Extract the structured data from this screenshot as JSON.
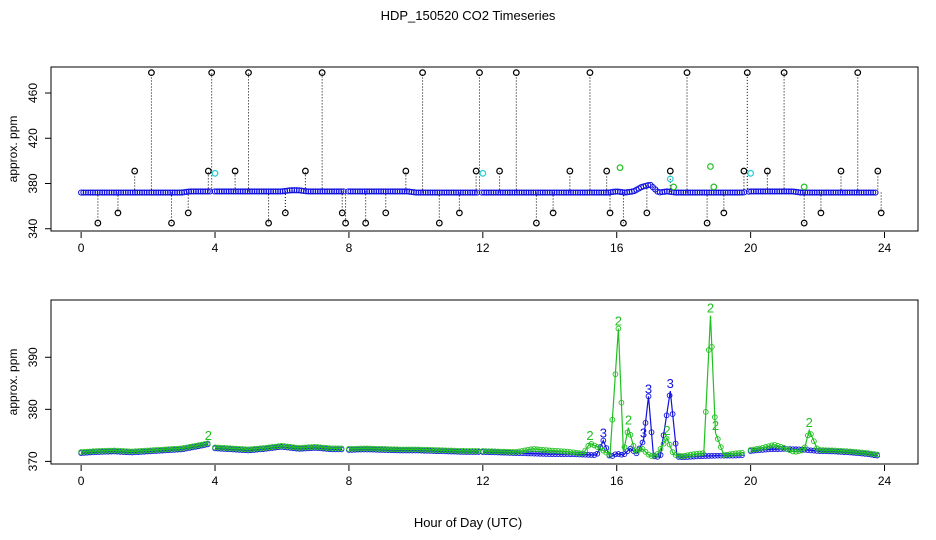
{
  "figure": {
    "title": "HDP_150520  CO2 Timeseries",
    "xlabel": "Hour of Day (UTC)"
  },
  "colors": {
    "black": "#000000",
    "blue": "#1010e0",
    "green": "#20c020",
    "cyan": "#20d0d0"
  },
  "chart_data": [
    {
      "type": "scatter",
      "panel": "top",
      "ylabel": "approx. ppm",
      "xlim": [
        0,
        24
      ],
      "ylim": [
        340,
        480
      ],
      "x_ticks": [
        0,
        4,
        8,
        12,
        16,
        20,
        24
      ],
      "x_tick_labels": [
        "0",
        "4",
        "8",
        "12",
        "16",
        "20",
        "24"
      ],
      "y_ticks": [
        340,
        380,
        420,
        460
      ],
      "y_tick_labels": [
        "340",
        "380",
        "420",
        "460"
      ],
      "baseline_series": {
        "name": "",
        "color": "blue",
        "x": [
          0.0,
          0.25,
          0.5,
          0.75,
          1.0,
          1.25,
          1.5,
          1.75,
          2.0,
          2.25,
          2.5,
          2.75,
          3.0,
          3.25,
          3.5,
          3.75,
          4.0,
          4.25,
          4.5,
          4.75,
          5.0,
          5.25,
          5.5,
          5.75,
          6.0,
          6.25,
          6.5,
          6.75,
          7.0,
          7.25,
          7.5,
          7.75,
          8.0,
          8.25,
          8.5,
          8.75,
          9.0,
          9.25,
          9.5,
          9.75,
          10.0,
          10.25,
          10.5,
          10.75,
          11.0,
          11.25,
          11.5,
          11.75,
          12.0,
          12.25,
          12.5,
          12.75,
          13.0,
          13.25,
          13.5,
          13.75,
          14.0,
          14.25,
          14.5,
          14.75,
          15.0,
          15.25,
          15.5,
          15.75,
          16.0,
          16.25,
          16.5,
          16.75,
          17.0,
          17.25,
          17.5,
          17.75,
          18.0,
          18.25,
          18.5,
          18.75,
          19.0,
          19.25,
          19.5,
          19.75,
          20.0,
          20.25,
          20.5,
          20.75,
          21.0,
          21.25,
          21.5,
          21.75,
          22.0,
          22.25,
          22.5,
          22.75,
          23.0,
          23.25,
          23.5,
          23.75
        ],
        "y": [
          372,
          372,
          372,
          372,
          372,
          372,
          372,
          372,
          372,
          372,
          372,
          372,
          372,
          373,
          373,
          373,
          373,
          373,
          373,
          373,
          373,
          373,
          373,
          373,
          373,
          374,
          374,
          373,
          373,
          373,
          373,
          373,
          373,
          373,
          373,
          373,
          373,
          373,
          373,
          373,
          372,
          372,
          372,
          372,
          372,
          372,
          372,
          372,
          372,
          372,
          372,
          372,
          372,
          372,
          372,
          372,
          372,
          372,
          372,
          372,
          372,
          372,
          372,
          372,
          373,
          372,
          373,
          377,
          379,
          372,
          373,
          372,
          372,
          372,
          372,
          372,
          372,
          372,
          372,
          372,
          373,
          373,
          373,
          373,
          373,
          373,
          372,
          372,
          372,
          372,
          372,
          372,
          372,
          372,
          372,
          372
        ]
      },
      "spike_series": {
        "name": "",
        "color": "black",
        "x": [
          0.5,
          1.1,
          1.6,
          2.1,
          2.7,
          3.2,
          3.8,
          3.9,
          4.6,
          5.0,
          5.6,
          6.1,
          6.7,
          7.2,
          7.8,
          7.9,
          8.5,
          9.1,
          9.7,
          10.2,
          10.7,
          11.3,
          11.8,
          11.9,
          12.5,
          13.0,
          13.6,
          14.1,
          14.6,
          15.2,
          15.7,
          15.8,
          16.2,
          16.9,
          17.6,
          18.1,
          18.7,
          19.2,
          19.8,
          19.9,
          20.5,
          21.0,
          21.6,
          22.1,
          22.7,
          23.2,
          23.8,
          23.9
        ],
        "y": [
          345,
          354,
          391,
          478,
          345,
          354,
          391,
          478,
          391,
          478,
          345,
          354,
          391,
          478,
          354,
          345,
          345,
          354,
          391,
          478,
          345,
          354,
          391,
          478,
          391,
          478,
          345,
          354,
          391,
          478,
          391,
          354,
          345,
          354,
          391,
          478,
          345,
          354,
          391,
          478,
          391,
          478,
          345,
          354,
          391,
          478,
          391,
          354
        ]
      },
      "green_points": {
        "name": "",
        "color": "green",
        "x": [
          16.1,
          17.7,
          18.8,
          18.9,
          21.6
        ],
        "y": [
          394,
          377,
          395,
          377,
          377
        ]
      },
      "cyan_points": {
        "name": "",
        "color": "cyan",
        "x": [
          4.0,
          12.0,
          17.6,
          20.0
        ],
        "y": [
          389,
          389,
          384,
          389
        ]
      }
    },
    {
      "type": "line",
      "panel": "bottom",
      "ylabel": "approx. ppm",
      "xlim": [
        0,
        24
      ],
      "ylim": [
        370,
        400
      ],
      "x_ticks": [
        0,
        4,
        8,
        12,
        16,
        20,
        24
      ],
      "x_tick_labels": [
        "0",
        "4",
        "8",
        "12",
        "16",
        "20",
        "24"
      ],
      "y_ticks": [
        370,
        380,
        390
      ],
      "y_tick_labels": [
        "370",
        "380",
        "390"
      ],
      "series": [
        {
          "name": "",
          "color": "blue",
          "marker": "3",
          "segments": [
            {
              "x": [
                0.0,
                0.5,
                1.0,
                1.5,
                2.0,
                2.5,
                3.0,
                3.5,
                3.8
              ],
              "y": [
                371.6,
                371.8,
                371.9,
                371.7,
                371.9,
                372.1,
                372.3,
                372.9,
                373.3
              ]
            },
            {
              "x": [
                4.0,
                4.5,
                5.0,
                5.5,
                6.0,
                6.5,
                7.0,
                7.5,
                7.8
              ],
              "y": [
                372.5,
                372.3,
                372.1,
                372.4,
                372.8,
                372.4,
                372.6,
                372.3,
                372.3
              ]
            },
            {
              "x": [
                8.0,
                8.5,
                9.0,
                9.5,
                10.0,
                10.5,
                11.0,
                11.5,
                11.9
              ],
              "y": [
                372.2,
                372.3,
                372.2,
                372.1,
                372.1,
                372.0,
                371.9,
                371.8,
                371.8
              ]
            },
            {
              "x": [
                12.0,
                12.5,
                13.0,
                13.5,
                14.0,
                14.5,
                15.0,
                15.4,
                15.6,
                15.8,
                16.0,
                16.2,
                16.4,
                16.6,
                16.8,
                16.95,
                17.1,
                17.3,
                17.6,
                17.8,
                18.0,
                18.5,
                19.0,
                19.5,
                19.8
              ],
              "y": [
                371.8,
                371.7,
                371.6,
                371.5,
                371.4,
                371.4,
                371.3,
                371.2,
                374.0,
                370.8,
                371.5,
                371.2,
                372.5,
                371.5,
                374.0,
                382.5,
                371.0,
                370.8,
                383.5,
                370.9,
                370.8,
                371.0,
                371.1,
                371.1,
                371.2
              ]
            },
            {
              "x": [
                20.0,
                20.5,
                21.0,
                21.5,
                22.0,
                22.5,
                23.0,
                23.5,
                23.8
              ],
              "y": [
                372.0,
                372.3,
                372.4,
                372.3,
                372.0,
                371.9,
                371.7,
                371.4,
                371.1
              ]
            }
          ]
        },
        {
          "name": "",
          "color": "green",
          "marker": "2",
          "segments": [
            {
              "x": [
                0.0,
                0.5,
                1.0,
                1.5,
                2.0,
                2.5,
                3.0,
                3.5,
                3.8
              ],
              "y": [
                371.8,
                372.0,
                372.1,
                371.9,
                372.1,
                372.3,
                372.5,
                373.1,
                373.5
              ]
            },
            {
              "x": [
                4.0,
                4.5,
                5.0,
                5.5,
                6.0,
                6.5,
                7.0,
                7.5,
                7.8
              ],
              "y": [
                372.7,
                372.5,
                372.3,
                372.6,
                373.0,
                372.6,
                372.8,
                372.5,
                372.5
              ]
            },
            {
              "x": [
                8.0,
                8.5,
                9.0,
                9.5,
                10.0,
                10.5,
                11.0,
                11.5,
                11.9
              ],
              "y": [
                372.4,
                372.5,
                372.4,
                372.3,
                372.3,
                372.2,
                372.1,
                372.0,
                372.0
              ]
            },
            {
              "x": [
                12.0,
                12.5,
                13.0,
                13.5,
                14.0,
                14.5,
                15.0,
                15.2,
                15.5,
                15.8,
                16.05,
                16.2,
                16.35,
                16.55,
                16.75,
                17.0,
                17.2,
                17.5,
                17.7,
                17.95,
                18.3,
                18.6,
                18.8,
                18.95,
                19.2,
                19.5,
                19.8
              ],
              "y": [
                372.0,
                371.9,
                371.8,
                372.4,
                372.1,
                371.9,
                371.5,
                373.5,
                372.5,
                371.2,
                395.5,
                371.8,
                376.5,
                371.8,
                372.5,
                371.0,
                371.2,
                374.5,
                371.3,
                371.0,
                371.4,
                371.6,
                398.0,
                375.5,
                371.2,
                371.5,
                371.7
              ]
            },
            {
              "x": [
                20.0,
                20.3,
                20.7,
                21.0,
                21.3,
                21.6,
                21.75,
                22.0,
                22.5,
                23.0,
                23.5,
                23.8
              ],
              "y": [
                372.2,
                372.5,
                373.2,
                372.6,
                371.8,
                372.2,
                376.0,
                372.2,
                372.1,
                371.9,
                371.6,
                371.3
              ]
            }
          ]
        }
      ]
    }
  ]
}
